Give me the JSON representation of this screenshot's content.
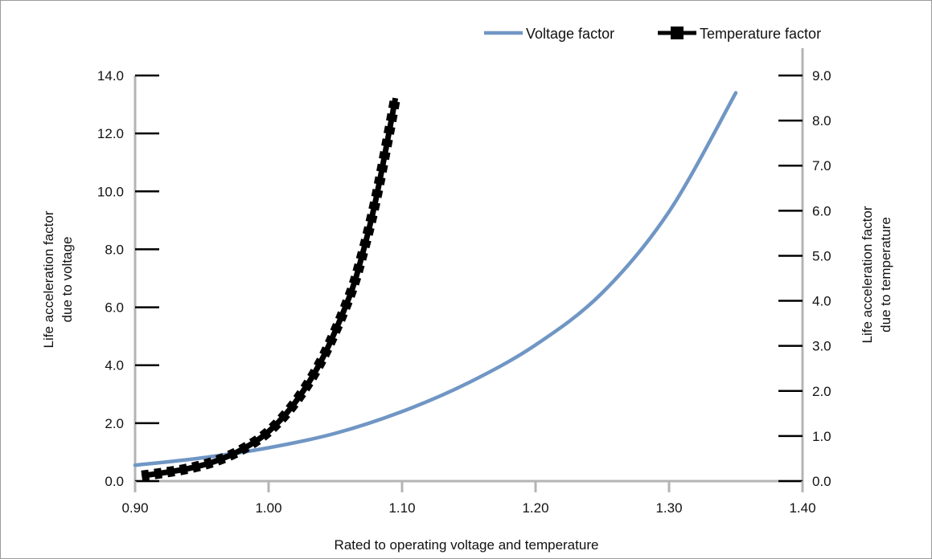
{
  "chart_data": {
    "type": "line",
    "title": "",
    "xlabel": "Rated to operating voltage and temperature",
    "ylabel": [
      "Life acceleration factor",
      "due to voltage"
    ],
    "y2label": [
      "Life acceleration factor",
      "due to temperature"
    ],
    "xlim": [
      0.9,
      1.4
    ],
    "ylim": [
      0,
      14
    ],
    "y2lim": [
      0,
      9
    ],
    "x_ticks": [
      "0.90",
      "1.00",
      "1.10",
      "1.20",
      "1.30",
      "1.40"
    ],
    "y_ticks": [
      "0.0",
      "2.0",
      "4.0",
      "6.0",
      "8.0",
      "10.0",
      "12.0",
      "14.0"
    ],
    "y2_ticks": [
      "0.0",
      "1.0",
      "2.0",
      "3.0",
      "4.0",
      "5.0",
      "6.0",
      "7.0",
      "8.0",
      "9.0"
    ],
    "grid": false,
    "legend_position": "top-right",
    "series": [
      {
        "name": "Voltage factor",
        "axis": "left",
        "color": "#7096c4",
        "style": "solid",
        "x": [
          0.9,
          0.95,
          1.0,
          1.05,
          1.1,
          1.15,
          1.2,
          1.25,
          1.3,
          1.35
        ],
        "y": [
          0.55,
          0.8,
          1.15,
          1.65,
          2.4,
          3.4,
          4.7,
          6.5,
          9.3,
          13.4
        ]
      },
      {
        "name": "Temperature factor",
        "axis": "right",
        "color": "#000000",
        "style": "dashed",
        "x": [
          0.905,
          0.92,
          0.94,
          0.96,
          0.98,
          1.0,
          1.02,
          1.04,
          1.06,
          1.07,
          1.08,
          1.09,
          1.095
        ],
        "y": [
          0.12,
          0.18,
          0.28,
          0.44,
          0.7,
          1.1,
          1.75,
          2.7,
          4.05,
          5.0,
          6.2,
          7.7,
          8.5
        ]
      }
    ]
  }
}
